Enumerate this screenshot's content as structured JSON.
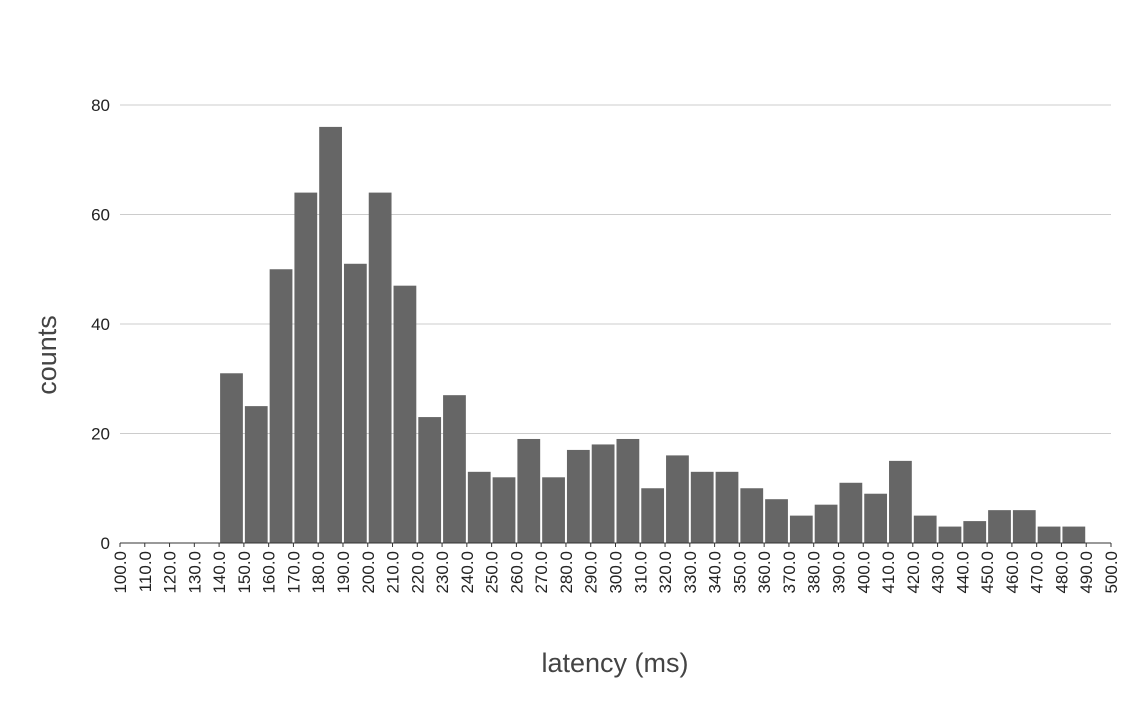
{
  "chart_data": {
    "type": "histogram",
    "xlabel": "latency (ms)",
    "ylabel": "counts",
    "bins": [
      100,
      110,
      120,
      130,
      140,
      150,
      160,
      170,
      180,
      190,
      200,
      210,
      220,
      230,
      240,
      250,
      260,
      270,
      280,
      290,
      300,
      310,
      320,
      330,
      340,
      350,
      360,
      370,
      380,
      390,
      400,
      410,
      420,
      430,
      440,
      450,
      460,
      470,
      480,
      490,
      500
    ],
    "values": [
      0,
      0,
      0,
      0,
      31,
      25,
      50,
      64,
      76,
      51,
      64,
      47,
      23,
      27,
      13,
      12,
      19,
      12,
      17,
      18,
      19,
      10,
      16,
      13,
      13,
      10,
      8,
      5,
      7,
      11,
      9,
      15,
      5,
      3,
      4,
      6,
      6,
      3,
      3,
      0
    ],
    "color": "#666666",
    "xlim": [
      100,
      500
    ],
    "xticks": [
      {
        "value": 100,
        "label": "100.0"
      },
      {
        "value": 110,
        "label": "110.0"
      },
      {
        "value": 120,
        "label": "120.0"
      },
      {
        "value": 130,
        "label": "130.0"
      },
      {
        "value": 140,
        "label": "140.0"
      },
      {
        "value": 150,
        "label": "150.0"
      },
      {
        "value": 160,
        "label": "160.0"
      },
      {
        "value": 170,
        "label": "170.0"
      },
      {
        "value": 180,
        "label": "180.0"
      },
      {
        "value": 190,
        "label": "190.0"
      },
      {
        "value": 200,
        "label": "200.0"
      },
      {
        "value": 210,
        "label": "210.0"
      },
      {
        "value": 220,
        "label": "220.0"
      },
      {
        "value": 230,
        "label": "230.0"
      },
      {
        "value": 240,
        "label": "240.0"
      },
      {
        "value": 250,
        "label": "250.0"
      },
      {
        "value": 260,
        "label": "260.0"
      },
      {
        "value": 270,
        "label": "270.0"
      },
      {
        "value": 280,
        "label": "280.0"
      },
      {
        "value": 290,
        "label": "290.0"
      },
      {
        "value": 300,
        "label": "300.0"
      },
      {
        "value": 310,
        "label": "310.0"
      },
      {
        "value": 320,
        "label": "320.0"
      },
      {
        "value": 330,
        "label": "330.0"
      },
      {
        "value": 340,
        "label": "340.0"
      },
      {
        "value": 350,
        "label": "350.0"
      },
      {
        "value": 360,
        "label": "360.0"
      },
      {
        "value": 370,
        "label": "370.0"
      },
      {
        "value": 380,
        "label": "380.0"
      },
      {
        "value": 390,
        "label": "390.0"
      },
      {
        "value": 400,
        "label": "400.0"
      },
      {
        "value": 410,
        "label": "410.0"
      },
      {
        "value": 420,
        "label": "420.0"
      },
      {
        "value": 430,
        "label": "430.0"
      },
      {
        "value": 440,
        "label": "440.0"
      },
      {
        "value": 450,
        "label": "450.0"
      },
      {
        "value": 460,
        "label": "460.0"
      },
      {
        "value": 470,
        "label": "470.0"
      },
      {
        "value": 480,
        "label": "480.0"
      },
      {
        "value": 490,
        "label": "490.0"
      },
      {
        "value": 500,
        "label": "500.0"
      }
    ],
    "ylim": [
      0,
      80
    ],
    "yticks": [
      0,
      20,
      40,
      60,
      80
    ],
    "grid": true
  }
}
